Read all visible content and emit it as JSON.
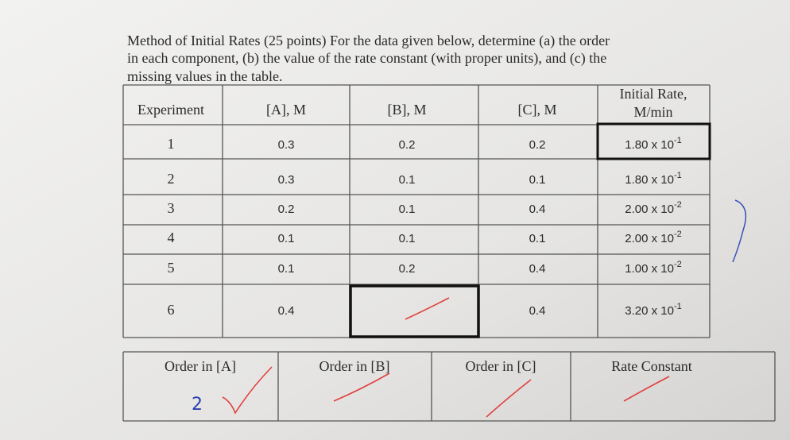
{
  "question": [
    "Method of Initial Rates (25 points) For the data given below, determine (a) the order",
    "in each component, (b) the value of the rate constant (with proper units), and (c) the",
    "missing values in the table."
  ],
  "table": {
    "headers": {
      "experiment": "Experiment",
      "a": "[A], M",
      "b": "[B], M",
      "c": "[C], M",
      "rate": [
        "Initial Rate,",
        "M/min"
      ]
    },
    "rows": [
      {
        "experiment": "1",
        "a": "0.3",
        "b": "0.2",
        "c": "0.2",
        "rate": {
          "mantissa": "1.80 x 10",
          "exponent": "-1"
        }
      },
      {
        "experiment": "2",
        "a": "0.3",
        "b": "0.1",
        "c": "0.1",
        "rate": {
          "mantissa": "1.80 x 10",
          "exponent": "-1"
        }
      },
      {
        "experiment": "3",
        "a": "0.2",
        "b": "0.1",
        "c": "0.4",
        "rate": {
          "mantissa": "2.00 x 10",
          "exponent": "-2"
        }
      },
      {
        "experiment": "4",
        "a": "0.1",
        "b": "0.1",
        "c": "0.1",
        "rate": {
          "mantissa": "2.00 x 10",
          "exponent": "-2"
        }
      },
      {
        "experiment": "5",
        "a": "0.1",
        "b": "0.2",
        "c": "0.4",
        "rate": {
          "mantissa": "1.00 x 10",
          "exponent": "-2"
        }
      },
      {
        "experiment": "6",
        "a": "0.4",
        "c": "0.4",
        "rate": {
          "mantissa": "3.20 x 10",
          "exponent": "-1"
        }
      }
    ]
  },
  "summary_table": {
    "columns": [
      {
        "header": "Order in [A]",
        "handwritten": "2"
      },
      {
        "header": "Order in [B]"
      },
      {
        "header": "Order in [C]"
      },
      {
        "header": "Rate Constant"
      }
    ]
  }
}
